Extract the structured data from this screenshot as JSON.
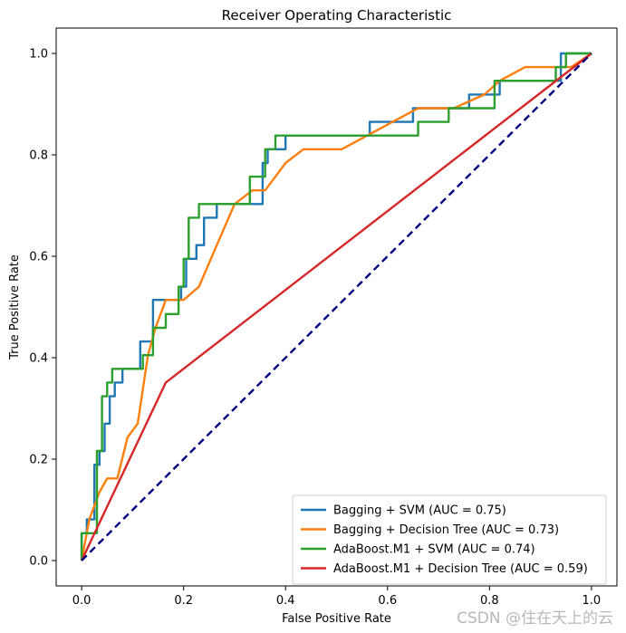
{
  "chart_data": {
    "type": "line",
    "title": "Receiver Operating Characteristic",
    "xlabel": "False Positive Rate",
    "ylabel": "True Positive Rate",
    "xlim": [
      -0.05,
      1.05
    ],
    "ylim": [
      -0.05,
      1.05
    ],
    "xticks": [
      0.0,
      0.2,
      0.4,
      0.6,
      0.8,
      1.0
    ],
    "yticks": [
      0.0,
      0.2,
      0.4,
      0.6,
      0.8,
      1.0
    ],
    "xtick_labels": [
      "0.0",
      "0.2",
      "0.4",
      "0.6",
      "0.8",
      "1.0"
    ],
    "ytick_labels": [
      "0.0",
      "0.2",
      "0.4",
      "0.6",
      "0.8",
      "1.0"
    ],
    "grid": false,
    "legend_position": "lower-right",
    "series": [
      {
        "name": "Bagging + SVM (AUC = 0.75)",
        "color": "#1f77b4",
        "x": [
          0,
          0,
          0.01,
          0.01,
          0.025,
          0.025,
          0.035,
          0.035,
          0.045,
          0.045,
          0.055,
          0.055,
          0.065,
          0.065,
          0.08,
          0.08,
          0.115,
          0.115,
          0.14,
          0.14,
          0.195,
          0.195,
          0.205,
          0.205,
          0.225,
          0.225,
          0.24,
          0.24,
          0.265,
          0.265,
          0.29,
          0.29,
          0.355,
          0.355,
          0.365,
          0.365,
          0.4,
          0.4,
          0.565,
          0.565,
          0.65,
          0.65,
          0.76,
          0.76,
          0.82,
          0.82,
          0.94,
          0.94,
          1.0
        ],
        "y": [
          0,
          0.054,
          0.054,
          0.081,
          0.081,
          0.189,
          0.189,
          0.216,
          0.216,
          0.27,
          0.27,
          0.324,
          0.324,
          0.351,
          0.351,
          0.378,
          0.378,
          0.432,
          0.432,
          0.514,
          0.514,
          0.54,
          0.54,
          0.595,
          0.595,
          0.622,
          0.622,
          0.676,
          0.676,
          0.703,
          0.703,
          0.703,
          0.703,
          0.784,
          0.784,
          0.811,
          0.811,
          0.838,
          0.838,
          0.865,
          0.865,
          0.892,
          0.892,
          0.919,
          0.919,
          0.946,
          0.946,
          1.0,
          1.0
        ]
      },
      {
        "name": "Bagging + Decision Tree (AUC = 0.73)",
        "color": "#ff7f0e",
        "x": [
          0,
          0.015,
          0.035,
          0.05,
          0.07,
          0.09,
          0.11,
          0.13,
          0.145,
          0.165,
          0.2,
          0.23,
          0.265,
          0.3,
          0.335,
          0.36,
          0.4,
          0.435,
          0.51,
          0.56,
          0.66,
          0.73,
          0.79,
          0.82,
          0.87,
          0.93,
          0.96,
          1.0
        ],
        "y": [
          0,
          0.081,
          0.135,
          0.162,
          0.162,
          0.243,
          0.27,
          0.405,
          0.459,
          0.514,
          0.514,
          0.54,
          0.622,
          0.703,
          0.73,
          0.73,
          0.784,
          0.811,
          0.811,
          0.838,
          0.892,
          0.892,
          0.919,
          0.946,
          0.973,
          0.973,
          0.973,
          1.0
        ]
      },
      {
        "name": "AdaBoost.M1 + SVM (AUC = 0.74)",
        "color": "#2ca02c",
        "x": [
          0,
          0,
          0.03,
          0.03,
          0.04,
          0.04,
          0.05,
          0.05,
          0.06,
          0.06,
          0.07,
          0.07,
          0.12,
          0.12,
          0.14,
          0.14,
          0.165,
          0.165,
          0.19,
          0.19,
          0.2,
          0.2,
          0.21,
          0.21,
          0.23,
          0.23,
          0.27,
          0.27,
          0.33,
          0.33,
          0.36,
          0.36,
          0.38,
          0.38,
          0.66,
          0.66,
          0.72,
          0.72,
          0.81,
          0.81,
          0.93,
          0.93,
          0.95,
          0.95,
          1.0
        ],
        "y": [
          0,
          0.054,
          0.054,
          0.216,
          0.216,
          0.324,
          0.324,
          0.351,
          0.351,
          0.378,
          0.378,
          0.378,
          0.378,
          0.405,
          0.405,
          0.459,
          0.459,
          0.486,
          0.486,
          0.54,
          0.54,
          0.595,
          0.595,
          0.676,
          0.676,
          0.703,
          0.703,
          0.703,
          0.703,
          0.757,
          0.757,
          0.811,
          0.811,
          0.838,
          0.838,
          0.865,
          0.865,
          0.892,
          0.892,
          0.946,
          0.946,
          0.973,
          0.973,
          1.0,
          1.0
        ]
      },
      {
        "name": "AdaBoost.M1 + Decision Tree (AUC = 0.59)",
        "color": "#d62728",
        "x": [
          0,
          0.165,
          1.0
        ],
        "y": [
          0,
          0.351,
          1.0
        ]
      },
      {
        "name": "",
        "color": "#000080",
        "dashed": true,
        "x": [
          0,
          1
        ],
        "y": [
          0,
          1
        ]
      }
    ]
  },
  "watermark": "CSDN @住在天上的云"
}
